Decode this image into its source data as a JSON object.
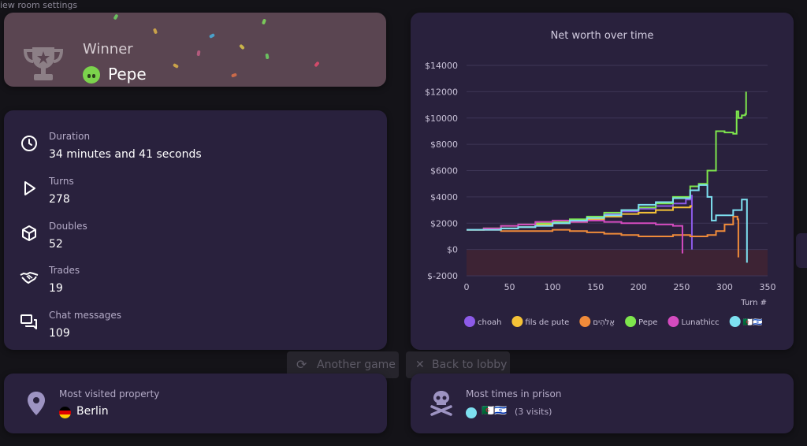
{
  "background": {
    "room_settings_link": "iew room settings"
  },
  "winner": {
    "label": "Winner",
    "name": "Pepe"
  },
  "stats": [
    {
      "label": "Duration",
      "value": "34 minutes and 41 seconds",
      "icon": "clock-icon"
    },
    {
      "label": "Turns",
      "value": "278",
      "icon": "play-icon"
    },
    {
      "label": "Doubles",
      "value": "52",
      "icon": "cube-icon"
    },
    {
      "label": "Trades",
      "value": "19",
      "icon": "handshake-icon"
    },
    {
      "label": "Chat messages",
      "value": "109",
      "icon": "chat-icon"
    }
  ],
  "buttons": {
    "another_game": "Another game",
    "back_to_lobby": "Back to lobby"
  },
  "most_visited": {
    "label": "Most visited property",
    "value": "Berlin"
  },
  "prison": {
    "label": "Most times in prison",
    "player": "🇩🇿🇮🇱",
    "visits": "(3 visits)"
  },
  "chart_data": {
    "type": "line",
    "title": "Net worth over time",
    "xlabel": "Turn #",
    "ylabel": "",
    "xlim": [
      0,
      350
    ],
    "ylim": [
      -2000,
      14000
    ],
    "xticks": [
      "0",
      "50",
      "100",
      "150",
      "200",
      "250",
      "300",
      "350"
    ],
    "yticks": [
      "$-2000",
      "$0",
      "$2000",
      "$4000",
      "$6000",
      "$8000",
      "$10000",
      "$12000",
      "$14000"
    ],
    "grid": true,
    "legend_position": "bottom",
    "series": [
      {
        "name": "choah",
        "color": "#8d5be8",
        "x": [
          0,
          20,
          40,
          60,
          80,
          100,
          120,
          140,
          160,
          180,
          200,
          220,
          240,
          255,
          260,
          262,
          262
        ],
        "y": [
          1500,
          1500,
          1600,
          1700,
          1800,
          2000,
          2200,
          2400,
          2700,
          2900,
          3100,
          3300,
          3500,
          3800,
          4100,
          4000,
          0
        ]
      },
      {
        "name": "fils de pute",
        "color": "#f5c237",
        "x": [
          0,
          20,
          40,
          60,
          80,
          100,
          120,
          140,
          160,
          180,
          200,
          220,
          240,
          260,
          262
        ],
        "y": [
          1500,
          1600,
          1600,
          1700,
          1900,
          2000,
          2100,
          2300,
          2500,
          2700,
          2800,
          3000,
          3200,
          3300,
          3300
        ]
      },
      {
        "name": "אֱלֹהִים",
        "color": "#f08b3a",
        "x": [
          0,
          20,
          40,
          60,
          80,
          100,
          120,
          140,
          160,
          180,
          200,
          220,
          240,
          260,
          280,
          290,
          300,
          310,
          315,
          316
        ],
        "y": [
          1500,
          1500,
          1400,
          1400,
          1400,
          1500,
          1400,
          1300,
          1200,
          1100,
          1000,
          1000,
          1100,
          1000,
          1100,
          1400,
          1900,
          2500,
          2300,
          -600
        ]
      },
      {
        "name": "Pepe",
        "color": "#7ee64d",
        "x": [
          0,
          20,
          40,
          60,
          80,
          100,
          120,
          140,
          160,
          180,
          200,
          220,
          240,
          260,
          270,
          280,
          290,
          300,
          310,
          314,
          316,
          320,
          324,
          325
        ],
        "y": [
          1500,
          1600,
          1800,
          1900,
          2000,
          2100,
          2300,
          2500,
          2800,
          3000,
          3200,
          3500,
          4000,
          4800,
          5000,
          6000,
          9000,
          8900,
          8800,
          10500,
          10000,
          10200,
          10300,
          12000
        ]
      },
      {
        "name": "Lunathicc",
        "color": "#d44bbf",
        "x": [
          0,
          20,
          40,
          60,
          80,
          100,
          120,
          140,
          160,
          180,
          200,
          220,
          240,
          250,
          251
        ],
        "y": [
          1500,
          1600,
          1800,
          1900,
          2100,
          2200,
          2100,
          2200,
          2100,
          2000,
          2000,
          1900,
          1800,
          1800,
          -300
        ]
      },
      {
        "name": "🇩🇿🇮🇱",
        "color": "#7de0f0",
        "x": [
          0,
          20,
          40,
          60,
          80,
          100,
          120,
          140,
          160,
          180,
          200,
          220,
          240,
          260,
          270,
          280,
          285,
          290,
          300,
          310,
          320,
          325,
          326
        ],
        "y": [
          1500,
          1500,
          1600,
          1700,
          1800,
          2000,
          2200,
          2400,
          2600,
          3000,
          3400,
          3600,
          3900,
          4500,
          4900,
          4000,
          2200,
          2600,
          2600,
          3000,
          3800,
          3800,
          -1000
        ]
      }
    ]
  },
  "colors": {
    "card": "#29213d",
    "winner_card": "#5a4551",
    "background": "#141318",
    "negative_band": "#3d2334"
  }
}
